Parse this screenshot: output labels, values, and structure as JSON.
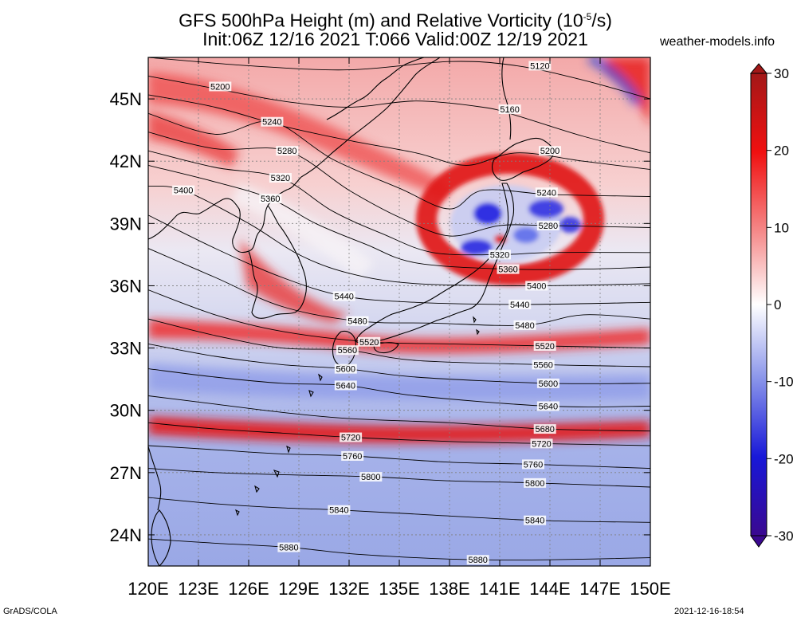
{
  "header": {
    "title_line1_pre": "GFS 500hPa Height (m) and Relative Vorticity (10",
    "title_line1_sup": "-5",
    "title_line1_post": "/s)",
    "title_line2": "Init:06Z 12/16 2021 T:066 Valid:00Z 12/19 2021",
    "site": "weather-models.info"
  },
  "footer": {
    "left": "GrADS/COLA",
    "right": "2021-12-16-18:54"
  },
  "map": {
    "lon_range": [
      120,
      150
    ],
    "lat_range": [
      22.5,
      47
    ],
    "lon_ticks": [
      "120E",
      "123E",
      "126E",
      "129E",
      "132E",
      "135E",
      "138E",
      "141E",
      "144E",
      "147E",
      "150E"
    ],
    "lat_ticks": [
      "24N",
      "27N",
      "30N",
      "33N",
      "36N",
      "39N",
      "42N",
      "45N"
    ],
    "lat_tick_values": [
      24,
      27,
      30,
      33,
      36,
      39,
      42,
      45
    ],
    "contour_labels": [
      {
        "text": "5120",
        "lon": 143.4,
        "lat": 46.6
      },
      {
        "text": "5160",
        "lon": 141.6,
        "lat": 44.5
      },
      {
        "text": "5200",
        "lon": 124.3,
        "lat": 45.6
      },
      {
        "text": "5200",
        "lon": 144.0,
        "lat": 42.5
      },
      {
        "text": "5240",
        "lon": 127.4,
        "lat": 43.9
      },
      {
        "text": "5240",
        "lon": 143.8,
        "lat": 40.5
      },
      {
        "text": "5280",
        "lon": 128.3,
        "lat": 42.5
      },
      {
        "text": "5280",
        "lon": 143.9,
        "lat": 38.9
      },
      {
        "text": "5320",
        "lon": 127.9,
        "lat": 41.2
      },
      {
        "text": "5320",
        "lon": 141.0,
        "lat": 37.5
      },
      {
        "text": "5360",
        "lon": 127.3,
        "lat": 40.2
      },
      {
        "text": "5360",
        "lon": 141.5,
        "lat": 36.8
      },
      {
        "text": "5400",
        "lon": 122.1,
        "lat": 40.6
      },
      {
        "text": "5400",
        "lon": 143.2,
        "lat": 36.0
      },
      {
        "text": "5440",
        "lon": 131.7,
        "lat": 35.5
      },
      {
        "text": "5440",
        "lon": 142.2,
        "lat": 35.1
      },
      {
        "text": "5480",
        "lon": 132.5,
        "lat": 34.3
      },
      {
        "text": "5480",
        "lon": 142.5,
        "lat": 34.1
      },
      {
        "text": "5520",
        "lon": 133.2,
        "lat": 33.3
      },
      {
        "text": "5520",
        "lon": 143.7,
        "lat": 33.1
      },
      {
        "text": "5560",
        "lon": 131.9,
        "lat": 32.9
      },
      {
        "text": "5560",
        "lon": 143.6,
        "lat": 32.2
      },
      {
        "text": "5600",
        "lon": 131.8,
        "lat": 32.0
      },
      {
        "text": "5600",
        "lon": 143.9,
        "lat": 31.3
      },
      {
        "text": "5640",
        "lon": 131.8,
        "lat": 31.2
      },
      {
        "text": "5640",
        "lon": 143.9,
        "lat": 30.2
      },
      {
        "text": "5680",
        "lon": 143.7,
        "lat": 29.1
      },
      {
        "text": "5720",
        "lon": 132.1,
        "lat": 28.7
      },
      {
        "text": "5720",
        "lon": 143.5,
        "lat": 28.4
      },
      {
        "text": "5760",
        "lon": 132.2,
        "lat": 27.8
      },
      {
        "text": "5760",
        "lon": 143.0,
        "lat": 27.4
      },
      {
        "text": "5800",
        "lon": 133.3,
        "lat": 26.8
      },
      {
        "text": "5800",
        "lon": 143.1,
        "lat": 26.5
      },
      {
        "text": "5840",
        "lon": 131.4,
        "lat": 25.2
      },
      {
        "text": "5840",
        "lon": 143.1,
        "lat": 24.7
      },
      {
        "text": "5880",
        "lon": 128.4,
        "lat": 23.4
      },
      {
        "text": "5880",
        "lon": 139.7,
        "lat": 22.8
      }
    ]
  },
  "colorbar": {
    "labels": [
      "30",
      "20",
      "10",
      "0",
      "-10",
      "-20",
      "-30"
    ],
    "values": [
      30,
      20,
      10,
      0,
      -10,
      -20,
      -30
    ],
    "top_color": "#b22222",
    "mid_color": "#ffffff",
    "bottom_color": "#2200aa"
  }
}
